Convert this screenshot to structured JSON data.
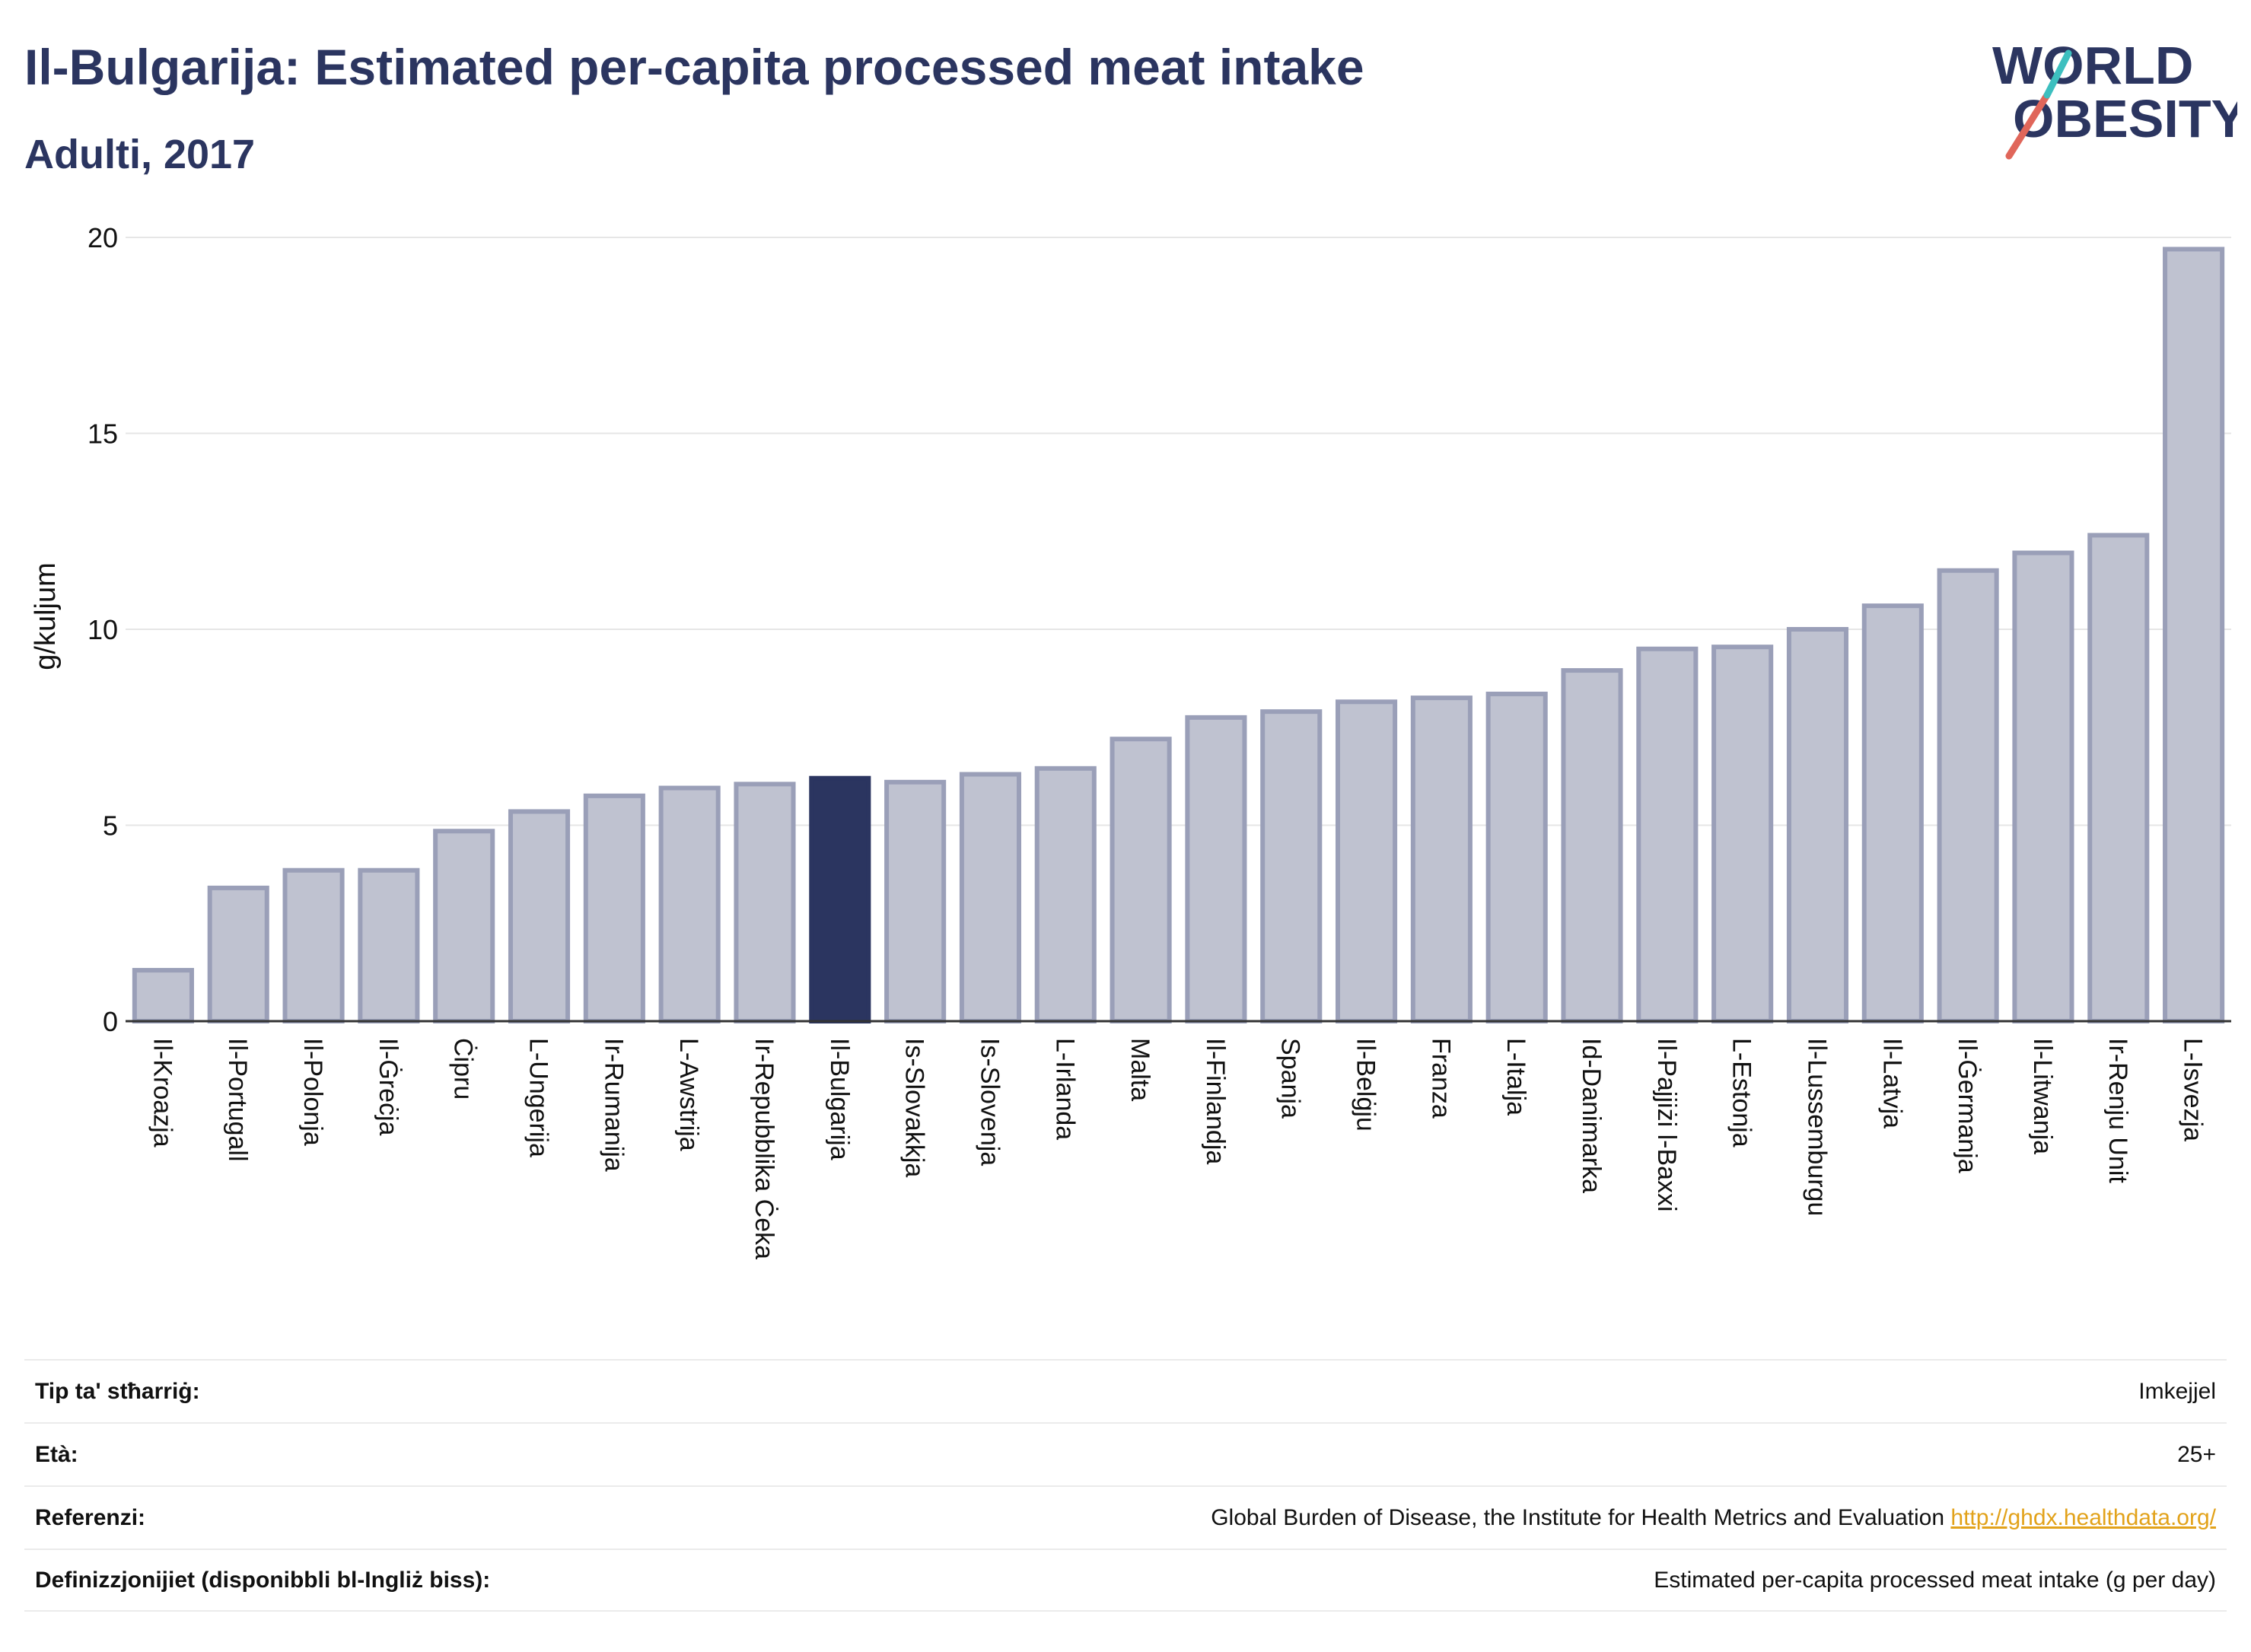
{
  "header": {
    "title": "Il-Bulgarija: Estimated per-capita processed meat intake",
    "subtitle": "Adulti, 2017"
  },
  "logo": {
    "line1": "WORLD",
    "line2": "OBESITY",
    "colors": [
      "#2b3560",
      "#e0665a",
      "#3dbfbf"
    ]
  },
  "chart_data": {
    "type": "bar",
    "ylabel": "g/kuljum",
    "ylim": [
      0,
      20
    ],
    "yticks": [
      0,
      5,
      10,
      15,
      20
    ],
    "grid": true,
    "highlight": "Il-Bulgarija",
    "colors": {
      "bar": "#bfc2d0",
      "bar_edge": "#9a9fb8",
      "highlight": "#2b3560"
    },
    "categories": [
      "Il-Kroazja",
      "Il-Portugall",
      "Il-Polonja",
      "Il-Ġreċja",
      "Ċipru",
      "L-Ungerija",
      "Ir-Rumanija",
      "L-Awstrija",
      "Ir-Repubblika Ċeka",
      "Il-Bulgarija",
      "Is-Slovakkja",
      "Is-Slovenja",
      "L-Irlanda",
      "Malta",
      "Il-Finlandja",
      "Spanja",
      "Il-Belġju",
      "Franza",
      "L-Italja",
      "Id-Danimarka",
      "Il-Pajjiżi l-Baxxi",
      "L-Estonja",
      "Il-Lussemburgu",
      "Il-Latvja",
      "Il-Ġermanja",
      "Il-Litwanja",
      "Ir-Renju Unit",
      "L-Isvezja"
    ],
    "values": [
      1.3,
      3.4,
      3.85,
      3.85,
      4.85,
      5.35,
      5.75,
      5.95,
      6.05,
      6.2,
      6.1,
      6.3,
      6.45,
      7.2,
      7.75,
      7.9,
      8.15,
      8.25,
      8.35,
      8.95,
      9.5,
      9.55,
      10.0,
      10.6,
      11.5,
      11.95,
      12.4,
      19.7
    ]
  },
  "info": [
    {
      "label": "Tip ta' stħarriġ:",
      "value": "Imkejjel"
    },
    {
      "label": "Età:",
      "value": "25+"
    },
    {
      "label": "Referenzi:",
      "value": "Global Burden of Disease, the Institute for Health Metrics and Evaluation",
      "link": "http://ghdx.healthdata.org/"
    },
    {
      "label": "Definizzjonijiet (disponibbli bl-Ingliż biss):",
      "value": "Estimated per-capita processed meat intake (g per day)"
    }
  ]
}
